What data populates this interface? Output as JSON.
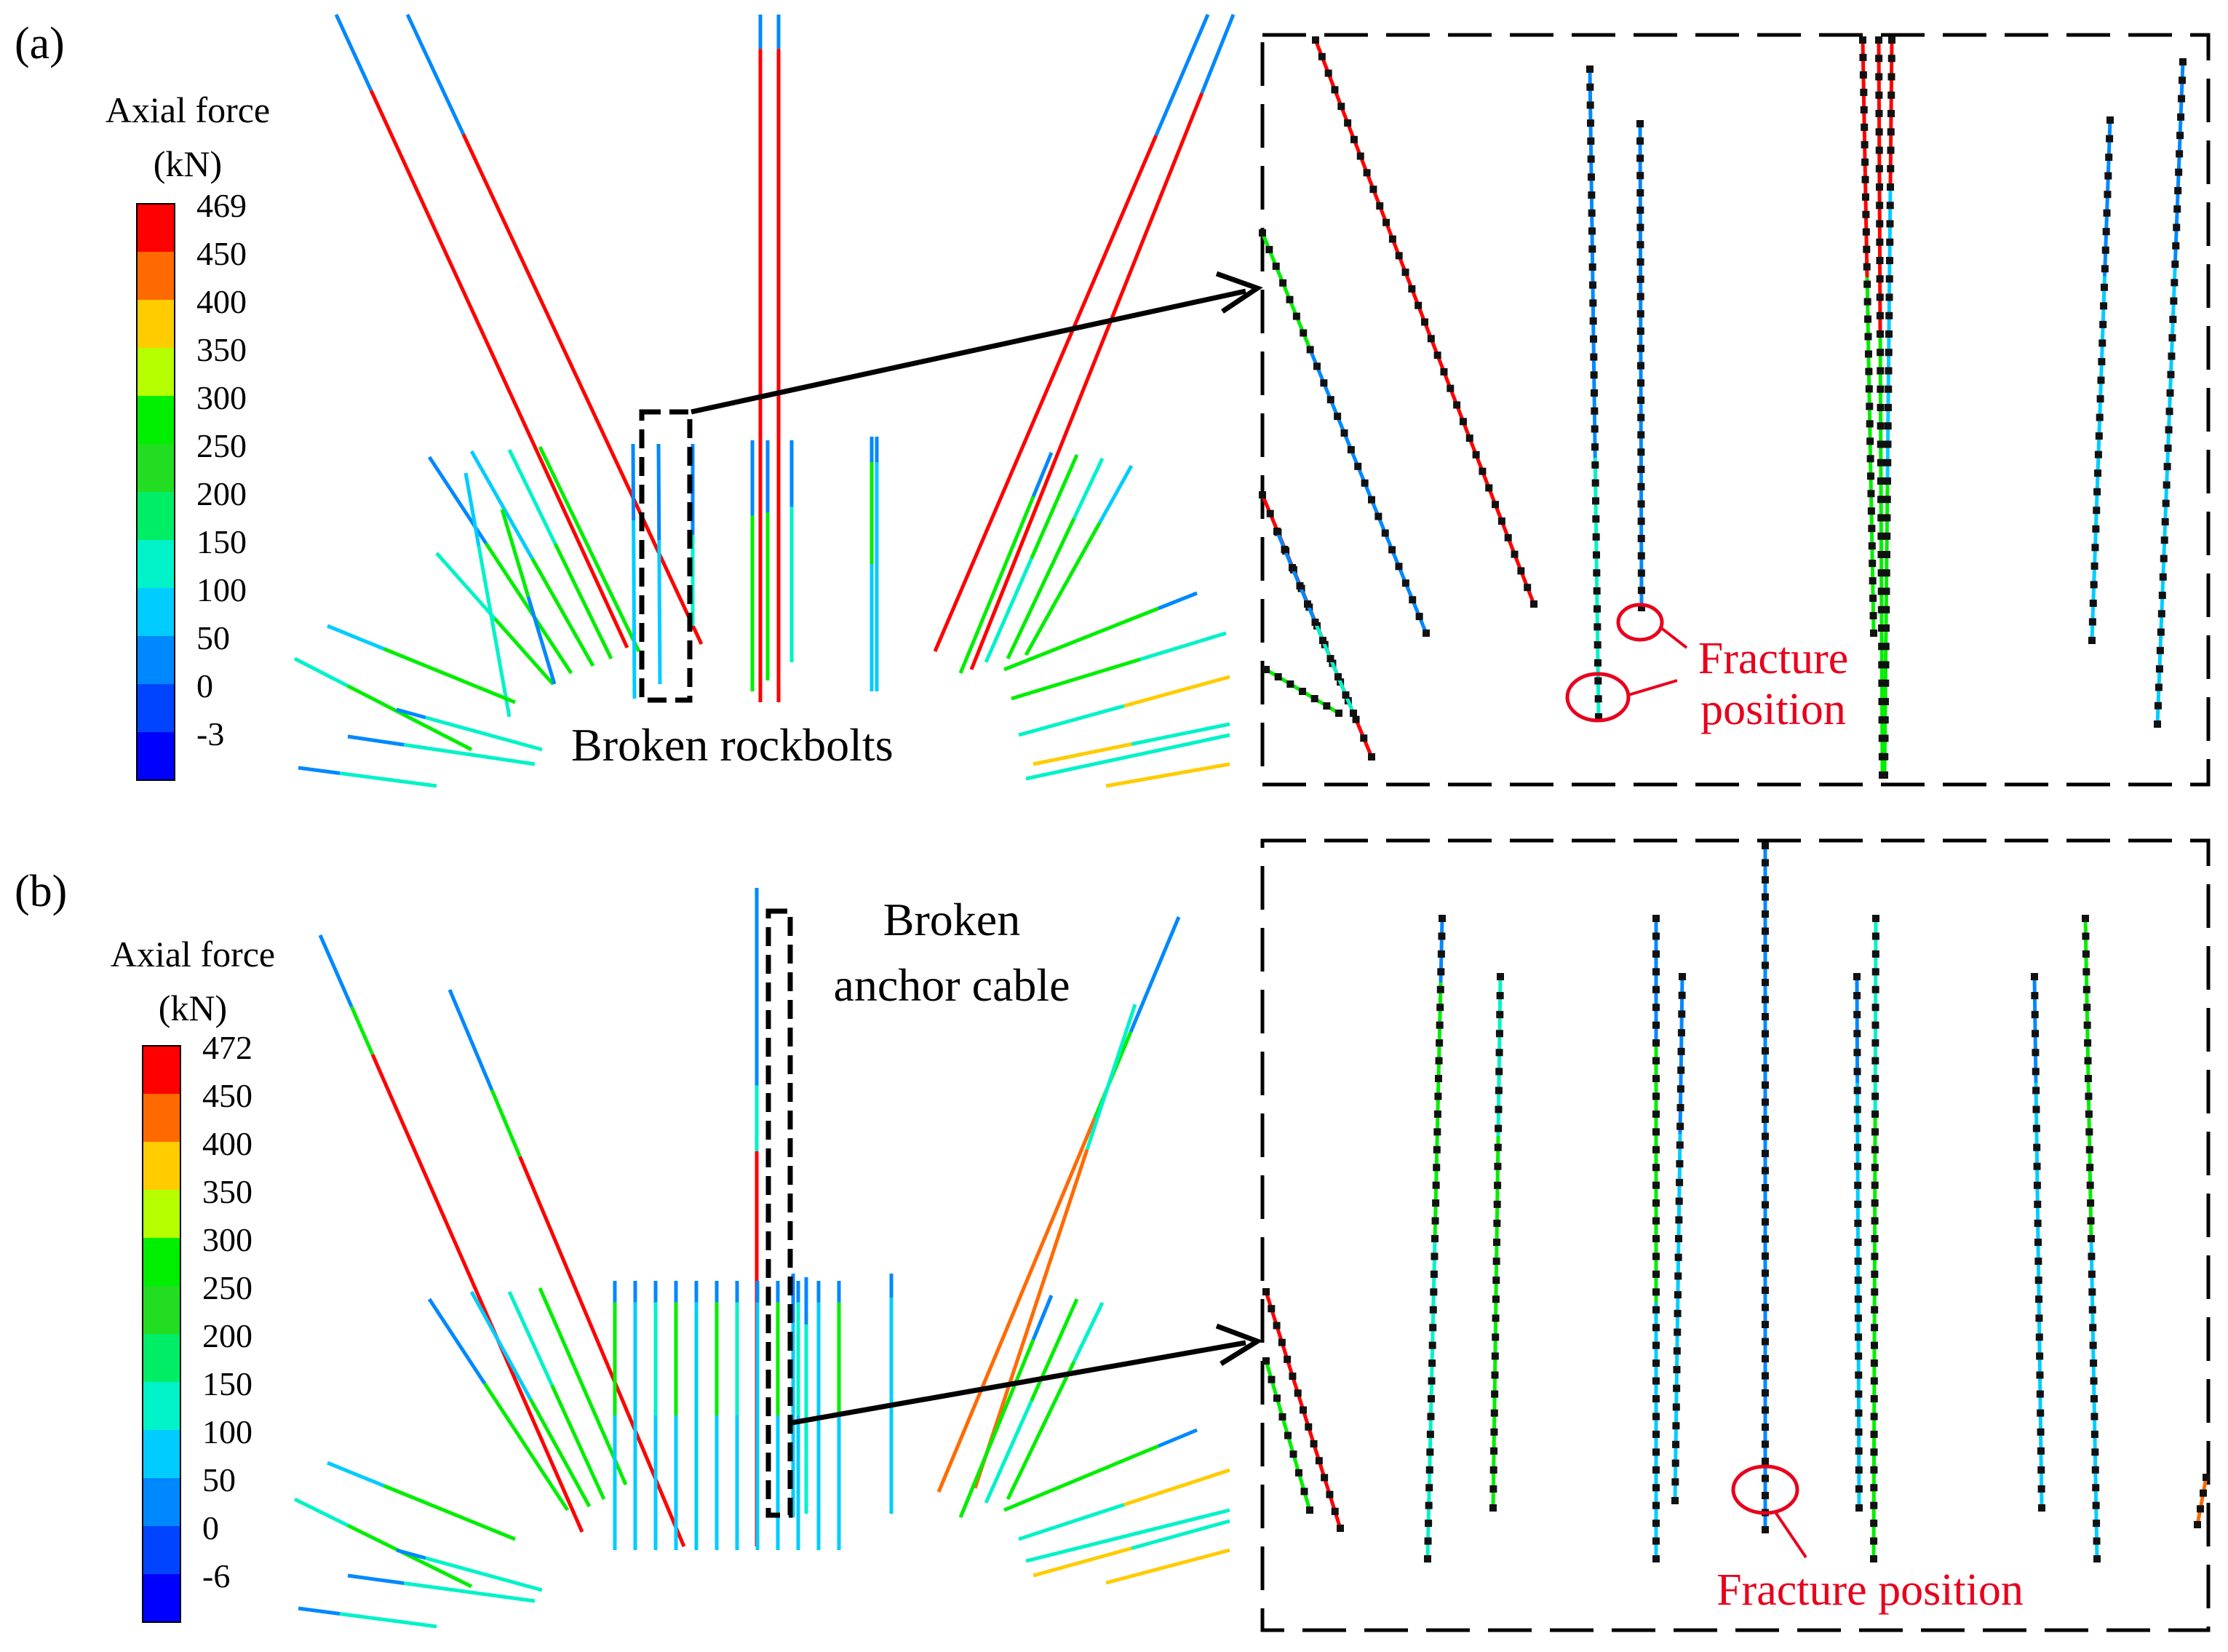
{
  "panels": [
    {
      "label": "(a)",
      "legend_title_line1": "Axial force",
      "legend_title_line2": "(kN)",
      "legend_ticks": [
        "469",
        "450",
        "400",
        "350",
        "300",
        "250",
        "200",
        "150",
        "100",
        "50",
        "0",
        "-3"
      ],
      "annotation": "Broken rockbolts",
      "fracture_label_line1": "Fracture",
      "fracture_label_line2": "position"
    },
    {
      "label": "(b)",
      "legend_title_line1": "Axial force",
      "legend_title_line2": "(kN)",
      "legend_ticks": [
        "472",
        "450",
        "400",
        "350",
        "300",
        "250",
        "200",
        "150",
        "100",
        "50",
        "0",
        "-6"
      ],
      "annotation_line1": "Broken",
      "annotation_line2": "anchor cable",
      "fracture_label": "Fracture position"
    }
  ],
  "colors": {
    "scale_top_to_bottom": [
      "#ff0000",
      "#ff6a00",
      "#ffcc00",
      "#b5ff00",
      "#00ee00",
      "#22dd22",
      "#00ee66",
      "#00f2c8",
      "#00ccff",
      "#0088ff",
      "#0044ff",
      "#0000ff"
    ],
    "fracture_marker": "#e8001c"
  }
}
